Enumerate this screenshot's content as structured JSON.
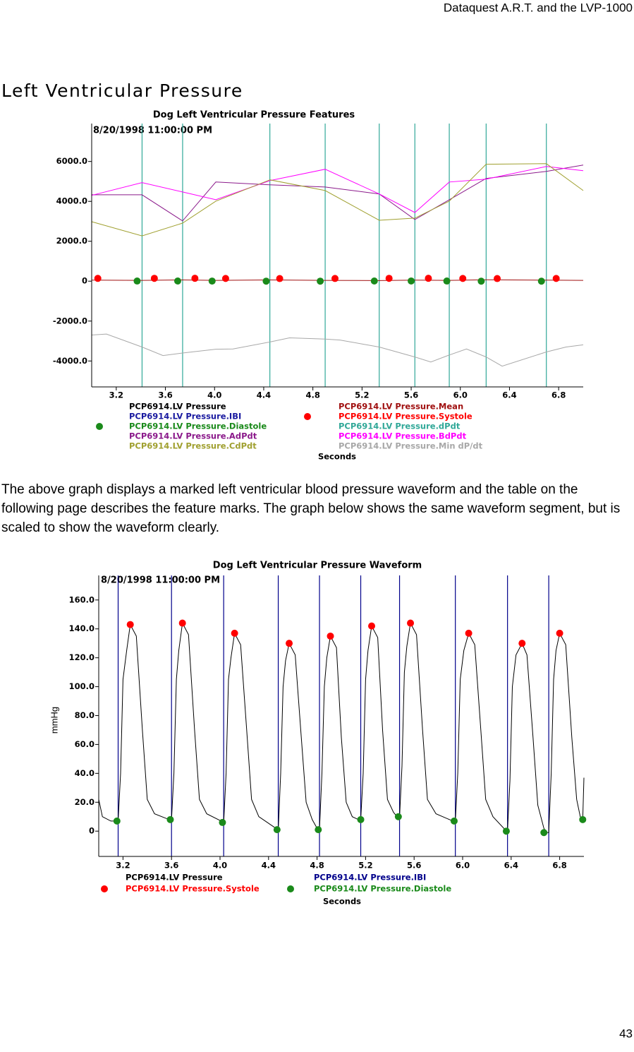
{
  "header": "Dataquest A.R.T. and the LVP-1000",
  "section_title": "Left Ventricular Pressure",
  "paragraph": "The above graph displays a marked left ventricular blood pressure waveform and the table on the following page describes the feature marks. The graph below shows the same waveform segment, but is scaled to show the waveform clearly.",
  "page_number": "43",
  "chart_data": [
    {
      "type": "line",
      "title": "Dog Left Ventricular Pressure Features",
      "annotation": "8/20/1998 11:00:00 PM",
      "xlabel": "Seconds",
      "xlim": [
        3.0,
        7.0
      ],
      "xticks": [
        3.2,
        3.6,
        {
          "value": 4,
          "label": "4.0"
        },
        4.4,
        4.8,
        5.2,
        5.6,
        {
          "value": 6,
          "label": "6.0"
        },
        6.4,
        6.8
      ],
      "ylim": [
        -5300,
        7900
      ],
      "yticks": [
        {
          "value": -4000,
          "label": "-4000.0"
        },
        {
          "value": -2000,
          "label": "-2000.0"
        },
        0,
        {
          "value": 2000,
          "label": "2000.0"
        },
        {
          "value": 4000,
          "label": "4000.0"
        },
        {
          "value": 6000,
          "label": "6000.0"
        }
      ],
      "legend_columns": 2,
      "series": [
        {
          "name": "PCP6914.LV Pressure",
          "color": "#000000"
        },
        {
          "name": "PCP6914.LV Pressure.Mean",
          "color": "#a01010",
          "x": [
            3.0,
            3.41,
            3.74,
            4.01,
            4.45,
            4.9,
            5.34,
            5.63,
            5.91,
            6.21,
            6.7,
            7.0
          ],
          "values": [
            50,
            40,
            60,
            40,
            60,
            40,
            30,
            50,
            40,
            70,
            50,
            40
          ]
        },
        {
          "name": "PCP6914.LV Pressure.IBI",
          "color": "#1a1aa0"
        },
        {
          "name": "PCP6914.LV Pressure.Systole",
          "color": "#ff0000",
          "marker": "dot",
          "x": [
            3.05,
            3.51,
            3.84,
            4.09,
            4.53,
            4.98,
            5.42,
            5.74,
            6.02,
            6.3,
            6.78
          ],
          "values": [
            140,
            143,
            144,
            137,
            130,
            135,
            142,
            144,
            137,
            130,
            137
          ]
        },
        {
          "name": "PCP6914.LV Pressure.Diastole",
          "color": "#1a8a1a",
          "marker": "dot",
          "x": [
            3.37,
            3.7,
            3.98,
            4.42,
            4.86,
            5.3,
            5.6,
            5.89,
            6.17,
            6.66
          ],
          "values": [
            7,
            8,
            6,
            1,
            1,
            8,
            10,
            7,
            0,
            -1
          ]
        },
        {
          "name": "PCP6914.LV Pressure.dPdt",
          "color": "#30a898",
          "marker": "vline",
          "x": [
            3.41,
            3.74,
            4.45,
            4.9,
            5.34,
            5.63,
            5.91,
            6.21,
            6.7
          ]
        },
        {
          "name": "PCP6914.LV Pressure.AdPdt",
          "color": "#8b1a8b",
          "x": [
            3.0,
            3.41,
            3.74,
            4.01,
            4.45,
            4.9,
            5.34,
            5.63,
            5.91,
            6.21,
            6.7,
            7.0
          ],
          "values": [
            4330,
            4330,
            3020,
            4970,
            4830,
            4720,
            4370,
            3090,
            4080,
            5150,
            5500,
            5820
          ]
        },
        {
          "name": "PCP6914.LV Pressure.BdPdt",
          "color": "#ff00ff",
          "x": [
            3.0,
            3.41,
            3.74,
            4.01,
            4.45,
            4.9,
            5.34,
            5.63,
            5.91,
            6.21,
            6.7,
            7.0
          ],
          "values": [
            4300,
            4940,
            4470,
            4080,
            5040,
            5610,
            4370,
            3440,
            4970,
            5110,
            5750,
            5540
          ]
        },
        {
          "name": "PCP6914.LV Pressure.CdPdt",
          "color": "#a0a030",
          "x": [
            3.0,
            3.41,
            3.74,
            4.01,
            4.45,
            4.9,
            5.34,
            5.63,
            5.91,
            6.21,
            6.7,
            7.0
          ],
          "values": [
            2980,
            2270,
            2910,
            4010,
            5080,
            4540,
            3050,
            3160,
            4010,
            5860,
            5890,
            4540
          ]
        },
        {
          "name": "PCP6914.LV Pressure.Min dP/dt",
          "color": "#a8a8a8",
          "x": [
            3.0,
            3.12,
            3.41,
            3.58,
            3.74,
            4.01,
            4.15,
            4.45,
            4.61,
            4.9,
            5.02,
            5.34,
            5.63,
            5.76,
            5.91,
            6.05,
            6.21,
            6.34,
            6.7,
            6.86,
            7.0
          ],
          "values": [
            -2700,
            -2650,
            -3300,
            -3730,
            -3600,
            -3410,
            -3400,
            -3050,
            -2840,
            -2900,
            -2950,
            -3300,
            -3800,
            -4050,
            -3700,
            -3400,
            -3800,
            -4260,
            -3550,
            -3300,
            -3190
          ]
        }
      ]
    },
    {
      "type": "line",
      "title": "Dog Left Ventricular Pressure Waveform",
      "annotation": "8/20/1998 11:00:00 PM",
      "xlabel": "Seconds",
      "ylabel": "mmHg",
      "xlim": [
        3.0,
        7.0
      ],
      "xticks": [
        3.2,
        3.6,
        {
          "value": 4,
          "label": "4.0"
        },
        4.4,
        4.8,
        5.2,
        5.6,
        {
          "value": 6,
          "label": "6.0"
        },
        6.4,
        6.8
      ],
      "ylim": [
        -17.5,
        177
      ],
      "yticks": [
        0,
        {
          "value": 20,
          "label": "20.0"
        },
        {
          "value": 40,
          "label": "40.0"
        },
        {
          "value": 60,
          "label": "60.0"
        },
        {
          "value": 80,
          "label": "80.0"
        },
        {
          "value": 100,
          "label": "100.0"
        },
        {
          "value": 120,
          "label": "120.0"
        },
        {
          "value": 140,
          "label": "140.0"
        },
        {
          "value": 160,
          "label": "160.0"
        }
      ],
      "legend_columns": 2,
      "series": [
        {
          "name": "PCP6914.LV Pressure",
          "color": "#000000",
          "x": [
            3.0,
            3.03,
            3.1,
            3.16,
            3.18,
            3.2,
            3.23,
            3.26,
            3.31,
            3.36,
            3.4,
            3.46,
            3.58,
            3.6,
            3.62,
            3.64,
            3.66,
            3.69,
            3.74,
            3.79,
            3.83,
            3.89,
            4.01,
            4.03,
            4.05,
            4.07,
            4.09,
            4.12,
            4.17,
            4.22,
            4.26,
            4.32,
            4.46,
            4.48,
            4.5,
            4.52,
            4.54,
            4.57,
            4.62,
            4.67,
            4.71,
            4.76,
            4.8,
            4.82,
            4.84,
            4.86,
            4.88,
            4.91,
            4.96,
            5.0,
            5.04,
            5.09,
            5.14,
            5.16,
            5.18,
            5.2,
            5.22,
            5.25,
            5.3,
            5.34,
            5.38,
            5.43,
            5.46,
            5.48,
            5.5,
            5.52,
            5.54,
            5.57,
            5.62,
            5.67,
            5.71,
            5.78,
            5.92,
            5.94,
            5.96,
            5.98,
            6.01,
            6.05,
            6.1,
            6.15,
            6.19,
            6.25,
            6.35,
            6.37,
            6.39,
            6.41,
            6.44,
            6.49,
            6.53,
            6.58,
            6.62,
            6.67,
            6.69,
            6.71,
            6.73,
            6.75,
            6.77,
            6.8,
            6.85,
            6.9,
            6.94,
            6.97,
            6.99,
            7.0
          ],
          "values": [
            22,
            10,
            7,
            7,
            40,
            105,
            125,
            143,
            135,
            70,
            22,
            12,
            8,
            8,
            40,
            105,
            125,
            144,
            136,
            70,
            22,
            12,
            7,
            6,
            40,
            105,
            120,
            137,
            129,
            70,
            22,
            10,
            2,
            1,
            40,
            100,
            118,
            130,
            122,
            65,
            20,
            8,
            2,
            1,
            40,
            100,
            120,
            135,
            127,
            65,
            20,
            10,
            8,
            8,
            40,
            105,
            125,
            142,
            134,
            70,
            22,
            13,
            10,
            10,
            45,
            110,
            128,
            144,
            136,
            70,
            22,
            12,
            7,
            7,
            40,
            105,
            125,
            137,
            129,
            70,
            22,
            10,
            1,
            0,
            35,
            100,
            122,
            130,
            122,
            65,
            18,
            2,
            -1,
            -1,
            40,
            105,
            125,
            137,
            129,
            65,
            22,
            10,
            8,
            37
          ]
        },
        {
          "name": "PCP6914.LV Pressure.IBI",
          "color": "#00008b",
          "marker": "vline",
          "x": [
            3.16,
            3.6,
            4.03,
            4.48,
            4.82,
            5.16,
            5.48,
            5.94,
            6.37,
            6.71
          ]
        },
        {
          "name": "PCP6914.LV Pressure.Systole",
          "color": "#ff0000",
          "marker": "dot",
          "x": [
            3.26,
            3.69,
            4.12,
            4.57,
            4.91,
            5.25,
            5.57,
            6.05,
            6.49,
            6.8
          ],
          "values": [
            143,
            144,
            137,
            130,
            135,
            142,
            144,
            137,
            130,
            137
          ]
        },
        {
          "name": "PCP6914.LV Pressure.Diastole",
          "color": "#1a8a1a",
          "marker": "dot",
          "x": [
            3.15,
            3.59,
            4.02,
            4.47,
            4.81,
            5.16,
            5.47,
            5.93,
            6.36,
            6.67,
            6.99
          ],
          "values": [
            7,
            8,
            6,
            1,
            1,
            8,
            10,
            7,
            0,
            -1,
            8
          ]
        }
      ]
    }
  ]
}
